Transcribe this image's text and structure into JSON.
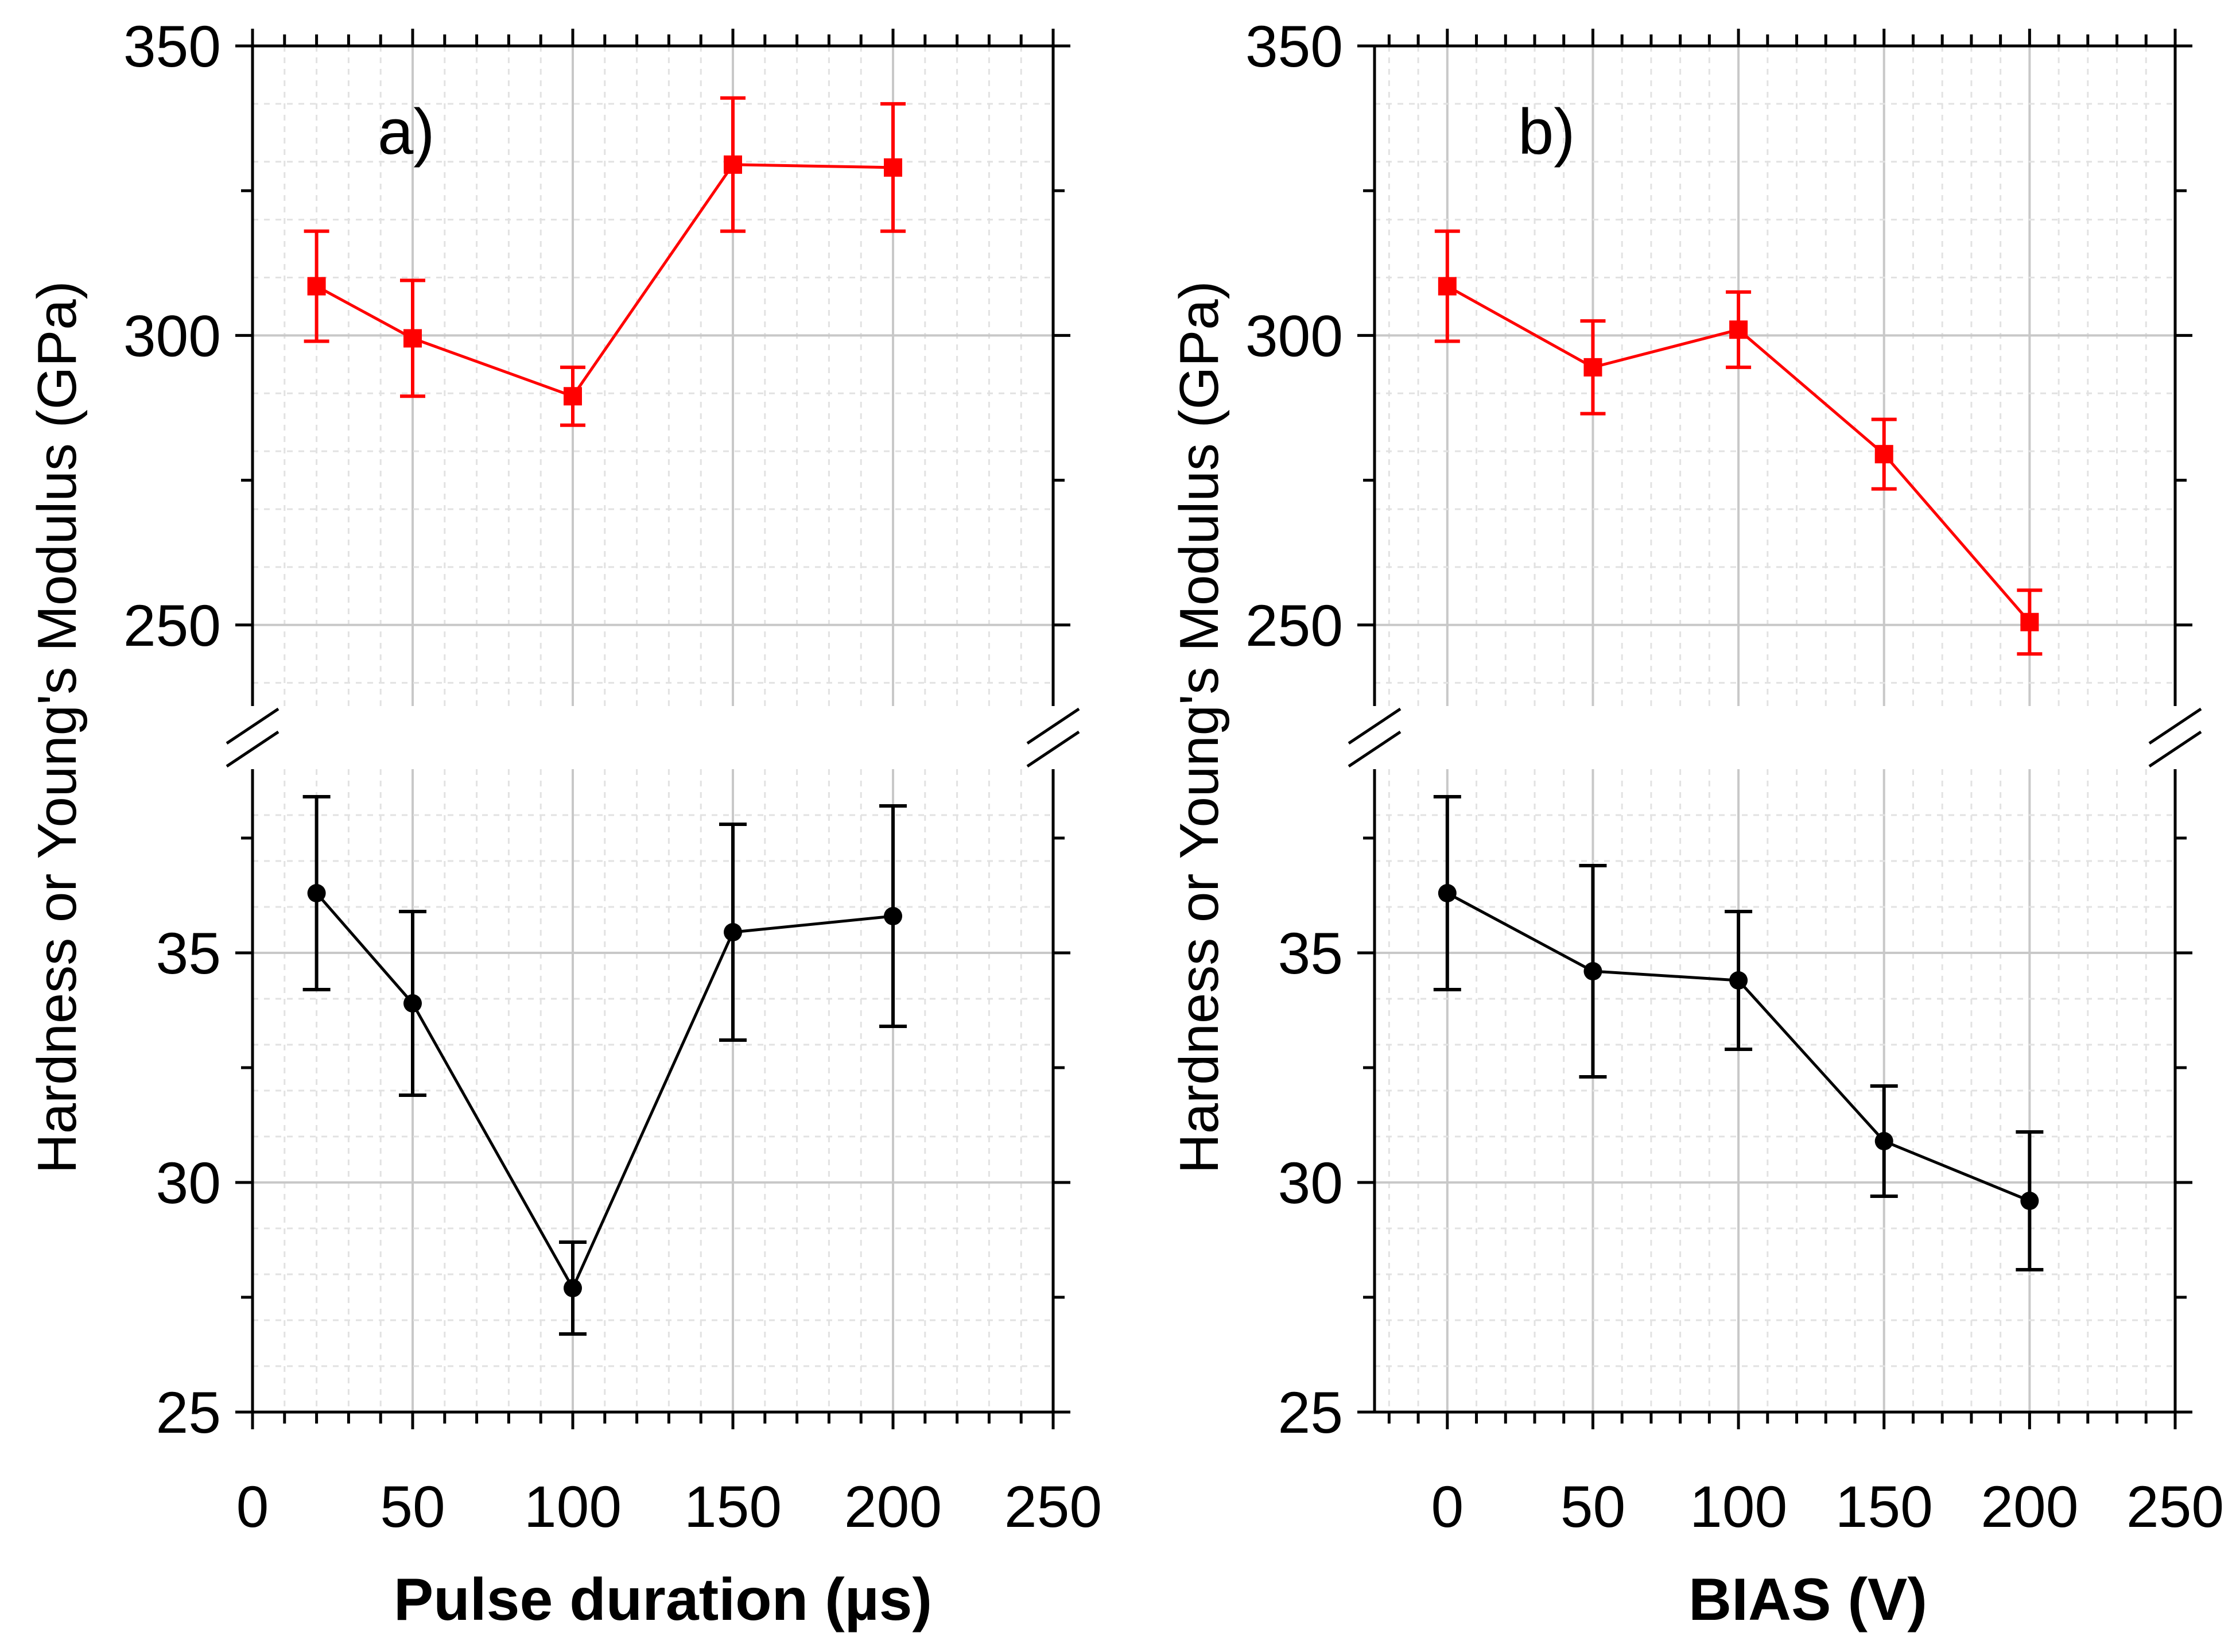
{
  "chart_data": [
    {
      "type": "line",
      "panel_label": "a)",
      "xlabel": "Pulse duration (µs)",
      "ylabel": "Hardness or Young's Modulus (GPa)",
      "xlim": [
        0,
        250
      ],
      "x_ticks": [
        "0",
        "50",
        "100",
        "150",
        "200",
        "250"
      ],
      "y_axis_break": true,
      "upper_ylim": [
        236,
        350
      ],
      "lower_ylim": [
        25,
        39
      ],
      "upper_y_ticks": [
        "250",
        "300",
        "350"
      ],
      "lower_y_ticks": [
        "25",
        "30",
        "35"
      ],
      "grid": true,
      "series": [
        {
          "name": "Young's Modulus",
          "segment": "upper",
          "color": "#ff0000",
          "marker": "square",
          "x": [
            20,
            50,
            100,
            150,
            200
          ],
          "values": [
            308.5,
            299.5,
            289.5,
            329.5,
            329
          ],
          "errors": [
            9.5,
            10,
            5,
            11.5,
            11
          ]
        },
        {
          "name": "Hardness",
          "segment": "lower",
          "color": "#000000",
          "marker": "circle",
          "x": [
            20,
            50,
            100,
            150,
            200
          ],
          "values": [
            36.3,
            33.9,
            27.7,
            35.45,
            35.8
          ],
          "errors": [
            2.1,
            2.0,
            1.0,
            2.35,
            2.4
          ]
        }
      ]
    },
    {
      "type": "line",
      "panel_label": "b)",
      "xlabel": "BIAS (V)",
      "ylabel": "Hardness or Young's Modulus (GPa)",
      "xlim": [
        -25,
        250
      ],
      "x_ticks": [
        "0",
        "50",
        "100",
        "150",
        "200",
        "250"
      ],
      "y_axis_break": true,
      "upper_ylim": [
        236,
        350
      ],
      "lower_ylim": [
        25,
        39
      ],
      "upper_y_ticks": [
        "250",
        "300",
        "350"
      ],
      "lower_y_ticks": [
        "25",
        "30",
        "35"
      ],
      "grid": true,
      "series": [
        {
          "name": "Young's Modulus",
          "segment": "upper",
          "color": "#ff0000",
          "marker": "square",
          "x": [
            0,
            50,
            100,
            150,
            200
          ],
          "values": [
            308.5,
            294.5,
            301,
            279.5,
            250.5
          ],
          "errors": [
            9.5,
            8,
            6.5,
            6,
            5.5
          ]
        },
        {
          "name": "Hardness",
          "segment": "lower",
          "color": "#000000",
          "marker": "circle",
          "x": [
            0,
            50,
            100,
            150,
            200
          ],
          "values": [
            36.3,
            34.6,
            34.4,
            30.9,
            29.6
          ],
          "errors": [
            2.1,
            2.3,
            1.5,
            1.2,
            1.5
          ]
        }
      ]
    }
  ]
}
